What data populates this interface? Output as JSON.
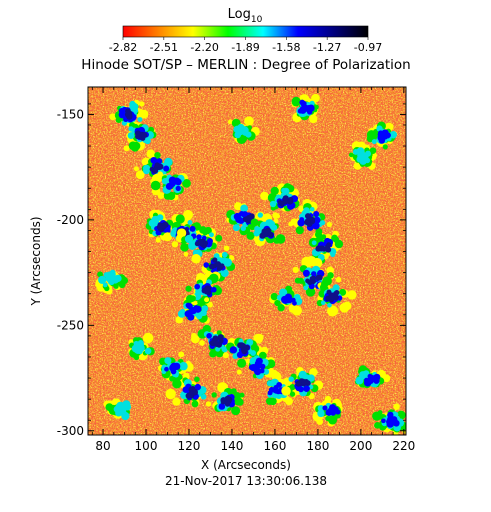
{
  "chart_data": {
    "type": "heatmap",
    "title": "Hinode SOT/SP – MERLIN : Degree of Polarization",
    "timestamp": "21-Nov-2017 13:30:06.138",
    "xlabel": "X (Arcseconds)",
    "ylabel": "Y (Arcseconds)",
    "xlim": [
      73,
      221
    ],
    "ylim": [
      -302,
      -137
    ],
    "x_ticks": [
      80,
      100,
      120,
      140,
      160,
      180,
      200,
      220
    ],
    "y_ticks": [
      -150,
      -200,
      -250,
      -300
    ],
    "colorbar": {
      "label_base": "Log",
      "label_sub": "10",
      "range": [
        -2.82,
        -0.97
      ],
      "tick_labels": [
        "-2.82",
        "-2.51",
        "-2.20",
        "-1.89",
        "-1.58",
        "-1.27",
        "-0.97"
      ],
      "colors": [
        "#ff0000",
        "#ff8000",
        "#ffff00",
        "#00ff00",
        "#00ffff",
        "#0000ff",
        "#000080",
        "#000000"
      ]
    },
    "background_color": "#f28020",
    "features": [
      {
        "x": 92,
        "y": -150,
        "level": 0.8
      },
      {
        "x": 97,
        "y": -160,
        "level": 0.75
      },
      {
        "x": 105,
        "y": -175,
        "level": 0.8
      },
      {
        "x": 112,
        "y": -183,
        "level": 0.7
      },
      {
        "x": 107,
        "y": -203,
        "level": 0.75
      },
      {
        "x": 118,
        "y": -206,
        "level": 0.9
      },
      {
        "x": 126,
        "y": -211,
        "level": 0.95
      },
      {
        "x": 133,
        "y": -221,
        "level": 0.9
      },
      {
        "x": 128,
        "y": -233,
        "level": 0.8
      },
      {
        "x": 122,
        "y": -243,
        "level": 0.7
      },
      {
        "x": 147,
        "y": -200,
        "level": 0.95
      },
      {
        "x": 156,
        "y": -206,
        "level": 0.9
      },
      {
        "x": 165,
        "y": -191,
        "level": 0.8
      },
      {
        "x": 176,
        "y": -200,
        "level": 0.85
      },
      {
        "x": 183,
        "y": -213,
        "level": 0.8
      },
      {
        "x": 178,
        "y": -228,
        "level": 0.9
      },
      {
        "x": 187,
        "y": -236,
        "level": 0.8
      },
      {
        "x": 166,
        "y": -238,
        "level": 0.6
      },
      {
        "x": 133,
        "y": -257,
        "level": 0.9
      },
      {
        "x": 145,
        "y": -261,
        "level": 0.85
      },
      {
        "x": 152,
        "y": -269,
        "level": 0.7
      },
      {
        "x": 113,
        "y": -270,
        "level": 0.6
      },
      {
        "x": 97,
        "y": -261,
        "level": 0.5
      },
      {
        "x": 121,
        "y": -282,
        "level": 0.85
      },
      {
        "x": 138,
        "y": -286,
        "level": 0.8
      },
      {
        "x": 161,
        "y": -281,
        "level": 0.7
      },
      {
        "x": 173,
        "y": -277,
        "level": 0.75
      },
      {
        "x": 186,
        "y": -291,
        "level": 0.6
      },
      {
        "x": 204,
        "y": -275,
        "level": 0.55
      },
      {
        "x": 214,
        "y": -295,
        "level": 0.65
      },
      {
        "x": 210,
        "y": -160,
        "level": 0.65
      },
      {
        "x": 201,
        "y": -170,
        "level": 0.5
      },
      {
        "x": 174,
        "y": -147,
        "level": 0.55
      },
      {
        "x": 144,
        "y": -158,
        "level": 0.45
      },
      {
        "x": 84,
        "y": -228,
        "level": 0.5
      },
      {
        "x": 88,
        "y": -290,
        "level": 0.45
      }
    ]
  }
}
